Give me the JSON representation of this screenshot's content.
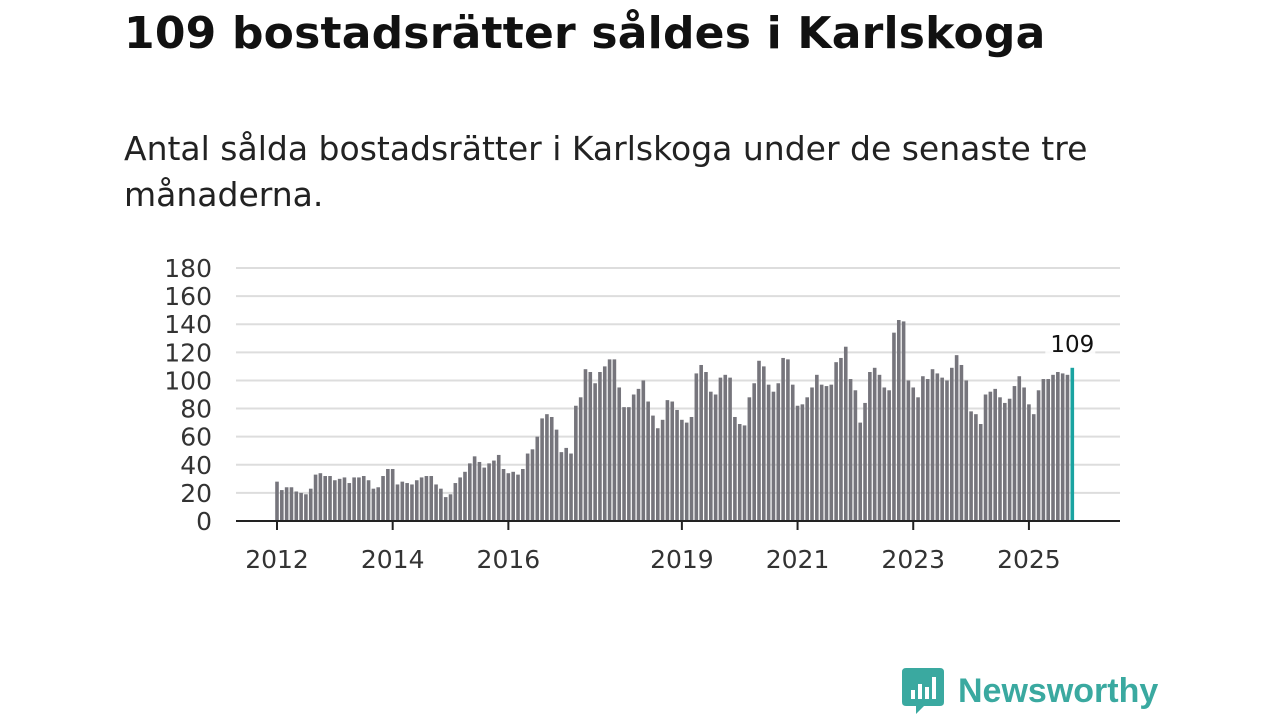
{
  "title": "109 bostadsrätter såldes i Karlskoga",
  "subtitle": "Antal sålda bostadsrätter i Karlskoga under de senaste tre månaderna.",
  "brand": {
    "name": "Newsworthy",
    "color": "#3aa9a0",
    "icon": "newsworthy-logo-icon"
  },
  "colors": {
    "bar": "#76757c",
    "highlight": "#1aa3a1",
    "grid": "#dddddd",
    "axis": "#222222"
  },
  "chart_data": {
    "type": "bar",
    "title": "109 bostadsrätter såldes i Karlskoga",
    "ylim": [
      0,
      180
    ],
    "yticks": [
      "0",
      "20",
      "40",
      "60",
      "80",
      "100",
      "120",
      "140",
      "160",
      "180"
    ],
    "xticks": [
      {
        "label": "2012",
        "month_index": 0
      },
      {
        "label": "2014",
        "month_index": 24
      },
      {
        "label": "2016",
        "month_index": 48
      },
      {
        "label": "2019",
        "month_index": 84
      },
      {
        "label": "2021",
        "month_index": 108
      },
      {
        "label": "2023",
        "month_index": 132
      },
      {
        "label": "2025",
        "month_index": 156
      }
    ],
    "start": "2012-01",
    "interval": "monthly, each value = sales over the previous three months",
    "values": [
      28,
      22,
      24,
      24,
      21,
      20,
      19,
      23,
      33,
      34,
      32,
      32,
      29,
      30,
      31,
      27,
      31,
      31,
      32,
      29,
      23,
      24,
      32,
      37,
      37,
      26,
      28,
      27,
      26,
      29,
      31,
      32,
      32,
      26,
      23,
      17,
      19,
      27,
      31,
      35,
      41,
      46,
      42,
      38,
      41,
      43,
      47,
      37,
      34,
      35,
      33,
      37,
      48,
      51,
      60,
      73,
      76,
      74,
      65,
      49,
      52,
      48,
      82,
      88,
      108,
      106,
      98,
      106,
      110,
      115,
      115,
      95,
      81,
      81,
      90,
      94,
      100,
      85,
      75,
      66,
      72,
      86,
      85,
      79,
      72,
      70,
      74,
      105,
      111,
      106,
      92,
      90,
      102,
      104,
      102,
      74,
      69,
      68,
      88,
      98,
      114,
      110,
      97,
      92,
      98,
      116,
      115,
      97,
      82,
      83,
      88,
      95,
      104,
      97,
      96,
      97,
      113,
      116,
      124,
      101,
      93,
      70,
      84,
      106,
      109,
      104,
      95,
      93,
      134,
      143,
      142,
      100,
      95,
      88,
      103,
      101,
      108,
      105,
      102,
      100,
      109,
      118,
      111,
      100,
      78,
      76,
      69,
      90,
      92,
      94,
      88,
      84,
      87,
      96,
      103,
      95,
      83,
      76,
      93,
      101,
      101,
      104,
      106,
      105,
      104,
      109
    ],
    "highlight_last": true,
    "last_label": "109"
  }
}
